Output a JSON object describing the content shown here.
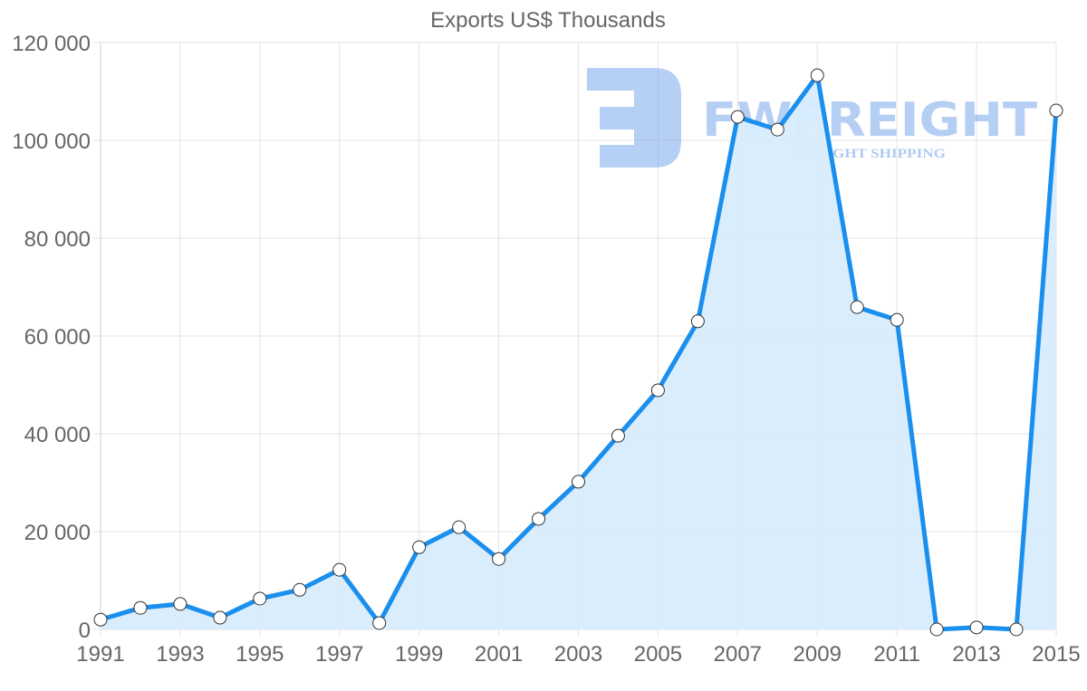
{
  "chart_data": {
    "type": "area",
    "title": "Exports US$ Thousands",
    "xlabel": "",
    "ylabel": "",
    "x": [
      1991,
      1992,
      1993,
      1994,
      1995,
      1996,
      1997,
      1998,
      1999,
      2000,
      2001,
      2002,
      2003,
      2004,
      2005,
      2006,
      2007,
      2008,
      2009,
      2010,
      2011,
      2012,
      2013,
      2014,
      2015
    ],
    "series": [
      {
        "name": "Exports US$ Thousands",
        "values": [
          2000,
          4400,
          5200,
          2400,
          6300,
          8100,
          12200,
          1300,
          16800,
          20900,
          14400,
          22600,
          30200,
          39600,
          48900,
          63000,
          104800,
          102200,
          113300,
          65900,
          63300,
          0,
          400,
          0,
          106100
        ]
      }
    ],
    "x_tick_labels": [
      "1991",
      "1993",
      "1995",
      "1997",
      "1999",
      "2001",
      "2003",
      "2005",
      "2007",
      "2009",
      "2011",
      "2013",
      "2015"
    ],
    "y_tick_labels": [
      "0",
      "20 000",
      "40 000",
      "60 000",
      "80 000",
      "100 000",
      "120 000"
    ],
    "y_ticks": [
      0,
      20000,
      40000,
      60000,
      80000,
      100000,
      120000
    ],
    "ylim": [
      0,
      120000
    ],
    "xlim": [
      1991,
      2015
    ],
    "grid": true,
    "legend": "none",
    "colors": {
      "line": "#1a8fed",
      "fill": "#d8ecfc",
      "marker_fill": "#ffffff",
      "marker_stroke": "#333333"
    }
  },
  "watermark": {
    "brand": "FWFREIGHT",
    "tagline": "FREIGHT SHIPPING",
    "color": "#7aa7ec"
  }
}
